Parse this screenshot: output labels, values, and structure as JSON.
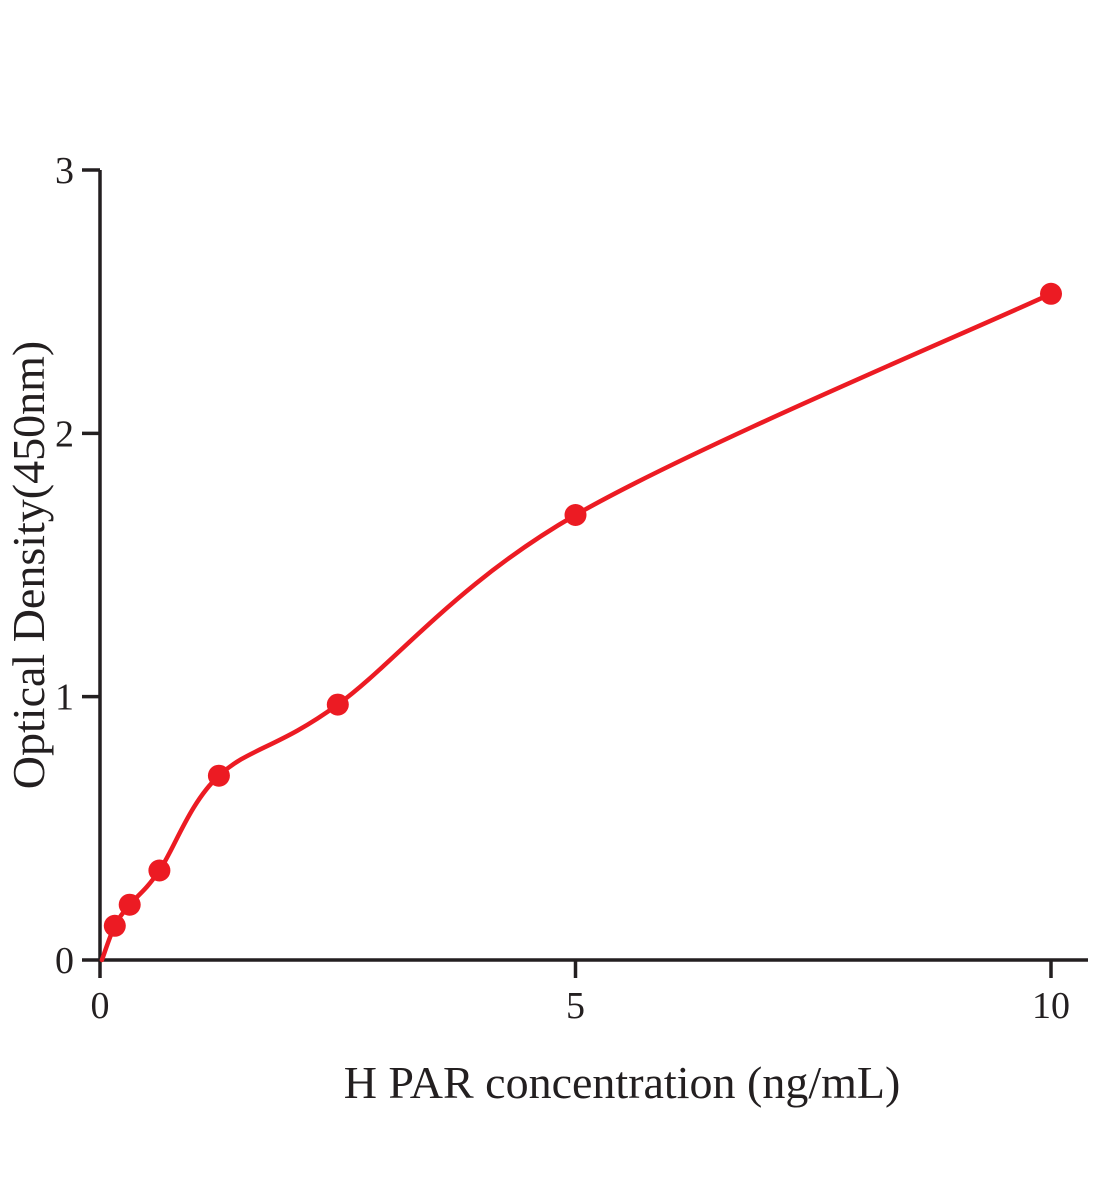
{
  "chart_data": {
    "type": "scatter",
    "title": "",
    "xlabel": "H PAR concentration (ng/mL)",
    "ylabel": "Optical Density(450nm)",
    "xlim": [
      0,
      10
    ],
    "ylim": [
      0,
      3
    ],
    "x_ticks": [
      "0",
      "5",
      "10"
    ],
    "x_tick_values": [
      0,
      5,
      10
    ],
    "y_ticks": [
      "0",
      "1",
      "2",
      "3"
    ],
    "y_tick_values": [
      0,
      1,
      2,
      3
    ],
    "x": [
      0.156,
      0.3125,
      0.625,
      1.25,
      2.5,
      5,
      10
    ],
    "y": [
      0.13,
      0.21,
      0.34,
      0.7,
      0.97,
      1.69,
      2.53
    ],
    "curve_start": [
      0.02,
      0.0
    ],
    "legend": "none",
    "grid": "off",
    "point_color": "#ec1b23",
    "line_color": "#ec1b23",
    "axis_color": "#231f20"
  }
}
